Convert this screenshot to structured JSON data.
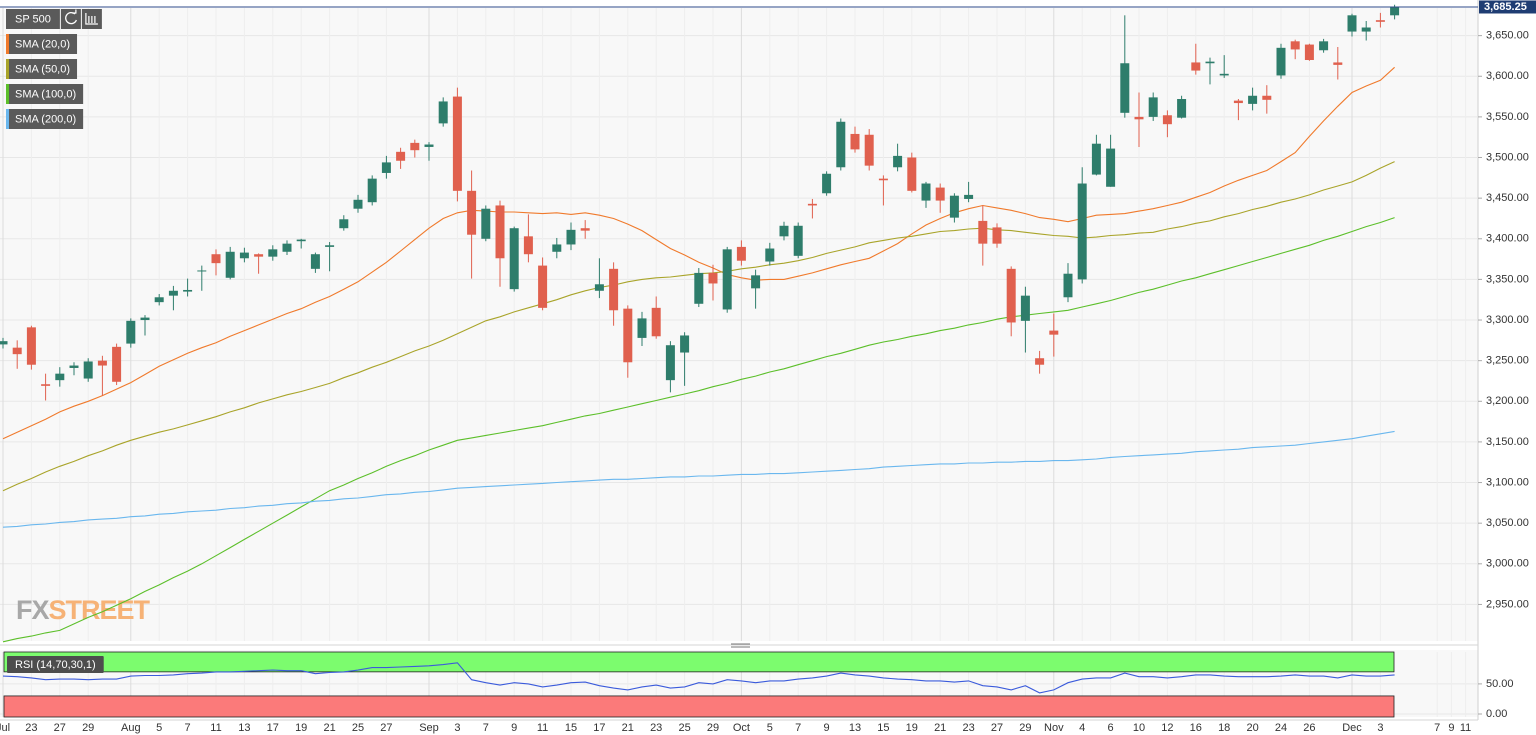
{
  "chart_data": {
    "type": "candlestick",
    "categories": [
      "Jul",
      null,
      "23",
      null,
      "27",
      null,
      "29",
      null,
      null,
      "Aug",
      null,
      "5",
      null,
      "7",
      null,
      "11",
      null,
      "13",
      null,
      "17",
      null,
      "19",
      null,
      "21",
      null,
      "25",
      null,
      "27",
      null,
      null,
      "Sep",
      null,
      "3",
      null,
      "7",
      null,
      "9",
      null,
      "11",
      null,
      "15",
      null,
      "17",
      null,
      "21",
      null,
      "23",
      null,
      "25",
      null,
      "29",
      null,
      "Oct",
      null,
      "5",
      null,
      "7",
      null,
      "9",
      null,
      "13",
      null,
      "15",
      null,
      "19",
      null,
      "21",
      null,
      "23",
      null,
      "27",
      null,
      "29",
      null,
      "Nov",
      null,
      "4",
      null,
      "6",
      null,
      "10",
      null,
      "12",
      null,
      "16",
      null,
      "18",
      null,
      "20",
      null,
      "24",
      null,
      "26",
      null,
      null,
      "Dec",
      null,
      "3",
      null,
      null,
      null,
      "7",
      "9",
      "11",
      null
    ],
    "candles": {
      "name": "SP 500",
      "up_color": "#2e7d6b",
      "down_color": "#e0604e",
      "open": [
        3270,
        3266,
        3291,
        3221,
        3226,
        3241,
        3228,
        3250,
        3267,
        3271,
        3300,
        3322,
        3330,
        3335,
        3360,
        3381,
        3352,
        3376,
        3381,
        3378,
        3384,
        3397,
        3363,
        3390,
        3413,
        3437,
        3445,
        3481,
        3507,
        3518,
        3513,
        3542,
        3575,
        3459,
        3400,
        3441,
        3338,
        3403,
        3367,
        3384,
        3393,
        3413,
        3336,
        3363,
        3314,
        3278,
        3315,
        3226,
        3260,
        3320,
        3358,
        3313,
        3390,
        3339,
        3372,
        3403,
        3379,
        3443,
        3456,
        3488,
        3529,
        3528,
        3474,
        3488,
        3500,
        3447,
        3463,
        3426,
        3449,
        3422,
        3414,
        3363,
        3299,
        3253,
        3287,
        3328,
        3350,
        3479,
        3464,
        3555,
        3550,
        3550,
        3552,
        3549,
        3617,
        3616,
        3601,
        3570,
        3566,
        3576,
        3601,
        3643,
        3639,
        3632,
        3617,
        3655,
        3655,
        3669,
        3675,
        null,
        null,
        null,
        null,
        null,
        null
      ],
      "high": [
        3278,
        3275,
        3293,
        3234,
        3242,
        3248,
        3253,
        3256,
        3271,
        3302,
        3306,
        3332,
        3342,
        3351,
        3367,
        3387,
        3390,
        3389,
        3382,
        3392,
        3398,
        3400,
        3383,
        3396,
        3429,
        3454,
        3478,
        3502,
        3512,
        3522,
        3519,
        3574,
        3586,
        3484,
        3441,
        3447,
        3415,
        3430,
        3377,
        3401,
        3420,
        3423,
        3376,
        3371,
        3318,
        3310,
        3329,
        3274,
        3285,
        3364,
        3368,
        3390,
        3398,
        3362,
        3395,
        3421,
        3420,
        3449,
        3483,
        3548,
        3538,
        3535,
        3478,
        3517,
        3506,
        3470,
        3468,
        3456,
        3470,
        3441,
        3419,
        3366,
        3341,
        3262,
        3308,
        3370,
        3488,
        3528,
        3528,
        3675,
        3580,
        3580,
        3558,
        3576,
        3640,
        3623,
        3626,
        3572,
        3586,
        3589,
        3640,
        3645,
        3640,
        3646,
        3636,
        3677,
        3668,
        3678,
        3688,
        null,
        null,
        null,
        null,
        null,
        null
      ],
      "low": [
        3265,
        3240,
        3239,
        3201,
        3218,
        3232,
        3224,
        3207,
        3220,
        3266,
        3281,
        3318,
        3312,
        3329,
        3336,
        3355,
        3350,
        3371,
        3357,
        3373,
        3380,
        3388,
        3358,
        3360,
        3410,
        3432,
        3441,
        3474,
        3486,
        3500,
        3496,
        3538,
        3446,
        3351,
        3397,
        3341,
        3335,
        3371,
        3312,
        3376,
        3386,
        3400,
        3327,
        3293,
        3229,
        3268,
        3277,
        3211,
        3219,
        3316,
        3324,
        3309,
        3367,
        3314,
        3367,
        3398,
        3376,
        3425,
        3453,
        3484,
        3506,
        3484,
        3441,
        3483,
        3457,
        3438,
        3432,
        3420,
        3445,
        3367,
        3389,
        3280,
        3260,
        3234,
        3255,
        3322,
        3345,
        3478,
        3464,
        3549,
        3513,
        3545,
        3525,
        3548,
        3602,
        3590,
        3598,
        3546,
        3558,
        3554,
        3597,
        3621,
        3619,
        3629,
        3596,
        3649,
        3644,
        3660,
        3670,
        null,
        null,
        null,
        null,
        null,
        null
      ],
      "close": [
        3274,
        3258,
        3245,
        3219,
        3234,
        3244,
        3249,
        3244,
        3224,
        3299,
        3303,
        3328,
        3336,
        3337,
        3361,
        3370,
        3384,
        3383,
        3378,
        3387,
        3394,
        3399,
        3381,
        3392,
        3424,
        3448,
        3474,
        3494,
        3496,
        3509,
        3516,
        3569,
        3459,
        3405,
        3437,
        3376,
        3413,
        3381,
        3315,
        3393,
        3411,
        3410,
        3344,
        3312,
        3248,
        3302,
        3280,
        3269,
        3281,
        3358,
        3345,
        3387,
        3373,
        3355,
        3388,
        3416,
        3416,
        3441,
        3480,
        3544,
        3510,
        3490,
        3472,
        3502,
        3459,
        3468,
        3447,
        3453,
        3454,
        3394,
        3394,
        3297,
        3330,
        3245,
        3282,
        3357,
        3468,
        3517,
        3511,
        3616,
        3547,
        3574,
        3541,
        3572,
        3607,
        3618,
        3603,
        3567,
        3576,
        3571,
        3635,
        3633,
        3620,
        3643,
        3614,
        3675,
        3660,
        3667,
        3685,
        null,
        null,
        null,
        null,
        null,
        null
      ]
    },
    "series": [
      {
        "name": "SMA (20,0)",
        "color": "#f07a2c",
        "values": [
          3154,
          3162,
          3170,
          3178,
          3187,
          3194,
          3200,
          3207,
          3215,
          3223,
          3233,
          3243,
          3251,
          3259,
          3266,
          3272,
          3280,
          3287,
          3294,
          3301,
          3308,
          3314,
          3322,
          3329,
          3338,
          3347,
          3359,
          3371,
          3385,
          3399,
          3413,
          3425,
          3432,
          3435,
          3434,
          3433,
          3433,
          3432,
          3431,
          3432,
          3430,
          3432,
          3429,
          3425,
          3418,
          3410,
          3399,
          3388,
          3380,
          3371,
          3364,
          3356,
          3352,
          3349,
          3350,
          3350,
          3354,
          3358,
          3363,
          3368,
          3372,
          3376,
          3385,
          3394,
          3406,
          3417,
          3425,
          3432,
          3437,
          3441,
          3438,
          3435,
          3431,
          3426,
          3424,
          3421,
          3425,
          3429,
          3430,
          3431,
          3434,
          3437,
          3441,
          3445,
          3451,
          3457,
          3465,
          3472,
          3478,
          3484,
          3495,
          3506,
          3526,
          3545,
          3563,
          3580,
          3588,
          3595,
          3611,
          null,
          null,
          null,
          null,
          null,
          null
        ]
      },
      {
        "name": "SMA (50,0)",
        "color": "#a9a42a",
        "values": [
          3090,
          3098,
          3105,
          3113,
          3120,
          3126,
          3133,
          3139,
          3146,
          3152,
          3157,
          3162,
          3166,
          3171,
          3176,
          3181,
          3187,
          3192,
          3198,
          3203,
          3208,
          3212,
          3217,
          3222,
          3229,
          3235,
          3242,
          3248,
          3255,
          3262,
          3268,
          3275,
          3283,
          3291,
          3299,
          3304,
          3310,
          3315,
          3320,
          3325,
          3331,
          3336,
          3340,
          3343,
          3347,
          3350,
          3352,
          3353,
          3355,
          3357,
          3358,
          3360,
          3363,
          3365,
          3368,
          3370,
          3373,
          3377,
          3382,
          3386,
          3390,
          3395,
          3398,
          3401,
          3403,
          3406,
          3409,
          3410,
          3412,
          3413,
          3411,
          3410,
          3408,
          3406,
          3404,
          3403,
          3401,
          3402,
          3404,
          3405,
          3407,
          3408,
          3412,
          3415,
          3419,
          3422,
          3427,
          3431,
          3436,
          3440,
          3445,
          3449,
          3454,
          3460,
          3465,
          3470,
          3478,
          3487,
          3495,
          null,
          null,
          null,
          null,
          null,
          null
        ]
      },
      {
        "name": "SMA (100,0)",
        "color": "#5cbf2a",
        "values": [
          2904,
          2908,
          2911,
          2915,
          2918,
          2926,
          2934,
          2941,
          2949,
          2957,
          2966,
          2974,
          2983,
          2991,
          3000,
          3010,
          3020,
          3030,
          3040,
          3050,
          3060,
          3070,
          3080,
          3090,
          3097,
          3105,
          3112,
          3120,
          3127,
          3133,
          3140,
          3146,
          3152,
          3155,
          3158,
          3161,
          3164,
          3167,
          3170,
          3174,
          3178,
          3182,
          3185,
          3189,
          3193,
          3197,
          3201,
          3205,
          3209,
          3213,
          3218,
          3222,
          3227,
          3231,
          3236,
          3240,
          3245,
          3250,
          3255,
          3259,
          3264,
          3269,
          3273,
          3276,
          3280,
          3283,
          3287,
          3290,
          3294,
          3297,
          3301,
          3304,
          3306,
          3308,
          3310,
          3312,
          3316,
          3320,
          3324,
          3329,
          3334,
          3338,
          3343,
          3348,
          3352,
          3357,
          3362,
          3367,
          3372,
          3377,
          3382,
          3387,
          3392,
          3398,
          3403,
          3409,
          3415,
          3420,
          3426,
          null,
          null,
          null,
          null,
          null,
          null
        ]
      },
      {
        "name": "SMA (200,0)",
        "color": "#6ab7ee",
        "values": [
          3045,
          3046,
          3048,
          3049,
          3051,
          3052,
          3054,
          3055,
          3056,
          3058,
          3059,
          3061,
          3062,
          3064,
          3065,
          3066,
          3068,
          3069,
          3071,
          3072,
          3074,
          3075,
          3077,
          3078,
          3080,
          3081,
          3083,
          3085,
          3086,
          3088,
          3089,
          3091,
          3093,
          3094,
          3095,
          3096,
          3097,
          3098,
          3099,
          3100,
          3101,
          3102,
          3103,
          3104,
          3104,
          3105,
          3106,
          3107,
          3107,
          3108,
          3108,
          3109,
          3110,
          3110,
          3111,
          3111,
          3112,
          3113,
          3114,
          3115,
          3116,
          3117,
          3119,
          3120,
          3121,
          3122,
          3123,
          3123,
          3124,
          3124,
          3125,
          3125,
          3126,
          3126,
          3127,
          3127,
          3128,
          3129,
          3131,
          3132,
          3133,
          3134,
          3135,
          3136,
          3138,
          3139,
          3140,
          3141,
          3143,
          3144,
          3145,
          3146,
          3148,
          3150,
          3152,
          3154,
          3157,
          3160,
          3163,
          null,
          null,
          null,
          null,
          null,
          null
        ]
      }
    ],
    "ylim": [
      2905,
      3684
    ],
    "yticks": [
      {
        "value": 2950,
        "label": "2,950.00"
      },
      {
        "value": 3000,
        "label": "3,000.00"
      },
      {
        "value": 3050,
        "label": "3,050.00"
      },
      {
        "value": 3100,
        "label": "3,100.00"
      },
      {
        "value": 3150,
        "label": "3,150.00"
      },
      {
        "value": 3200,
        "label": "3,200.00"
      },
      {
        "value": 3250,
        "label": "3,250.00"
      },
      {
        "value": 3300,
        "label": "3,300.00"
      },
      {
        "value": 3350,
        "label": "3,350.00"
      },
      {
        "value": 3400,
        "label": "3,400.00"
      },
      {
        "value": 3450,
        "label": "3,450.00"
      },
      {
        "value": 3500,
        "label": "3,500.00"
      },
      {
        "value": 3550,
        "label": "3,550.00"
      },
      {
        "value": 3600,
        "label": "3,600.00"
      },
      {
        "value": 3650,
        "label": "3,650.00"
      }
    ],
    "grid": true,
    "last_price": {
      "value": 3685.25,
      "label": "3,685.25"
    },
    "watermark": [
      "FX",
      "STREET"
    ],
    "rsi": {
      "name": "RSI (14,70,30,1)",
      "color": "#3b5bdb",
      "values": [
        63,
        62,
        60,
        57,
        58,
        58,
        57,
        58,
        58,
        63,
        64,
        64,
        65,
        67,
        68,
        70,
        70,
        71,
        72,
        73,
        72,
        72,
        67,
        69,
        70,
        73,
        77,
        77,
        78,
        79,
        80,
        82,
        85,
        57,
        52,
        48,
        52,
        50,
        45,
        48,
        52,
        53,
        47,
        43,
        40,
        45,
        48,
        43,
        45,
        52,
        50,
        57,
        55,
        52,
        55,
        55,
        58,
        60,
        63,
        68,
        65,
        63,
        60,
        58,
        57,
        55,
        55,
        53,
        55,
        47,
        45,
        40,
        47,
        35,
        40,
        52,
        58,
        60,
        60,
        68,
        62,
        62,
        60,
        62,
        65,
        65,
        63,
        62,
        62,
        62,
        63,
        65,
        63,
        63,
        60,
        65,
        63,
        63,
        65,
        null,
        null,
        null,
        null,
        null,
        null
      ],
      "ylim": [
        -5,
        103
      ],
      "yticks": [
        {
          "value": 0,
          "label": "0.00"
        },
        {
          "value": 50,
          "label": "50.00"
        }
      ],
      "overbought": 70,
      "oversold": 30,
      "overbought_color": "#7cfc6e",
      "oversold_color": "#fb7a7a"
    }
  }
}
